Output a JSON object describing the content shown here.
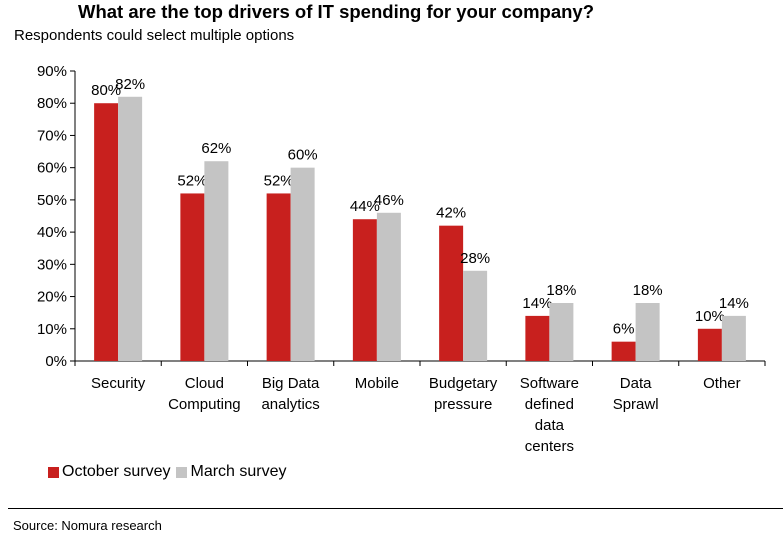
{
  "title": "What are the top drivers of IT spending for your company?",
  "subtitle": "Respondents could select multiple options",
  "source": "Source: Nomura research",
  "colors": {
    "october": "#c8201e",
    "march": "#c4c4c4"
  },
  "chart_data": {
    "type": "bar",
    "title": "What are the top drivers of IT spending for your company?",
    "subtitle": "Respondents could select multiple options",
    "categories": [
      [
        "Security"
      ],
      [
        "Cloud",
        "Computing"
      ],
      [
        "Big Data",
        "analytics"
      ],
      [
        "Mobile"
      ],
      [
        "Budgetary",
        "pressure"
      ],
      [
        "Software",
        "defined",
        "data",
        "centers"
      ],
      [
        "Data",
        "Sprawl"
      ],
      [
        "Other"
      ]
    ],
    "series": [
      {
        "name": "October survey",
        "values": [
          80,
          52,
          52,
          44,
          42,
          14,
          6,
          10
        ],
        "labels": [
          "80%",
          "52%",
          "52%",
          "44%",
          "42%",
          "14%",
          "6%",
          "10%"
        ]
      },
      {
        "name": "March survey",
        "values": [
          82,
          62,
          60,
          46,
          28,
          18,
          18,
          14
        ],
        "labels": [
          "82%",
          "62%",
          "60%",
          "46%",
          "28%",
          "18%",
          "18%",
          "14%"
        ]
      }
    ],
    "yticks": [
      "0%",
      "10%",
      "20%",
      "30%",
      "40%",
      "50%",
      "60%",
      "70%",
      "80%",
      "90%"
    ],
    "ylim": [
      0,
      90
    ],
    "legend": "bottom-left",
    "grid": false
  }
}
